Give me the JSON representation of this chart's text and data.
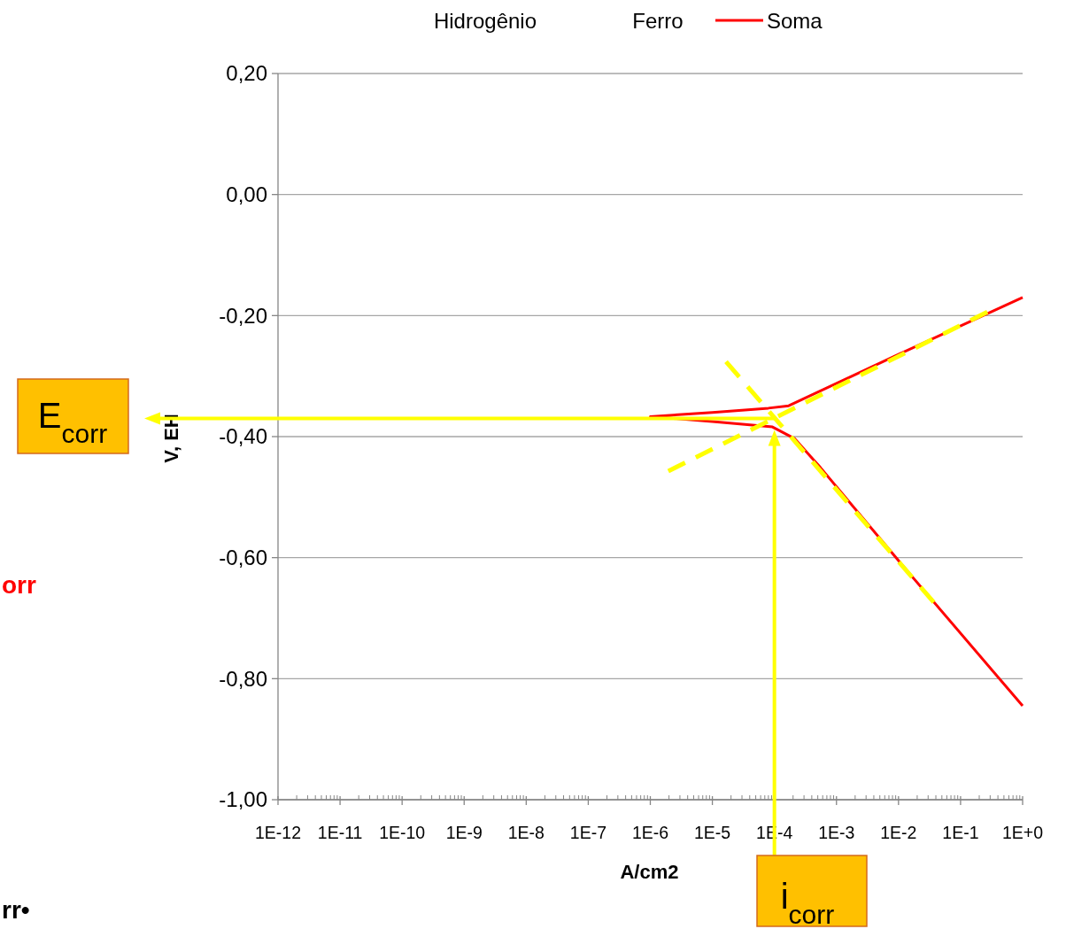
{
  "chart_data": {
    "type": "line",
    "xlabel": "A/cm2",
    "ylabel": "V, EH",
    "log": "x",
    "grid": "y",
    "legend": "top",
    "xlim": [
      1e-12,
      1
    ],
    "ylim": [
      -1,
      0.2
    ],
    "xticks": [
      {
        "value": 1e-12,
        "label": "1E-12"
      },
      {
        "value": 1e-11,
        "label": "1E-11"
      },
      {
        "value": 1e-10,
        "label": "1E-10"
      },
      {
        "value": 1e-09,
        "label": "1E-9"
      },
      {
        "value": 1e-08,
        "label": "1E-8"
      },
      {
        "value": 1e-07,
        "label": "1E-7"
      },
      {
        "value": 1e-06,
        "label": "1E-6"
      },
      {
        "value": 1e-05,
        "label": "1E-5"
      },
      {
        "value": 0.0001,
        "label": "1E-4"
      },
      {
        "value": 0.001,
        "label": "1E-3"
      },
      {
        "value": 0.01,
        "label": "1E-2"
      },
      {
        "value": 0.1,
        "label": "1E-1"
      },
      {
        "value": 1,
        "label": "1E+0"
      },
      {
        "value": 2e-12,
        "label": null
      },
      {
        "value": 3e-12,
        "label": null
      },
      {
        "value": 4e-12,
        "label": null
      },
      {
        "value": 5e-12,
        "label": null
      },
      {
        "value": 6e-12,
        "label": null
      },
      {
        "value": 7e-12,
        "label": null
      },
      {
        "value": 8e-12,
        "label": null
      },
      {
        "value": 9e-12,
        "label": null
      },
      {
        "value": 2e-11,
        "label": null
      },
      {
        "value": 3e-11,
        "label": null
      },
      {
        "value": 4e-11,
        "label": null
      },
      {
        "value": 5e-11,
        "label": null
      },
      {
        "value": 6e-11,
        "label": null
      },
      {
        "value": 7e-11,
        "label": null
      },
      {
        "value": 8e-11,
        "label": null
      },
      {
        "value": 9e-11,
        "label": null
      },
      {
        "value": 2e-10,
        "label": null
      },
      {
        "value": 3e-10,
        "label": null
      },
      {
        "value": 4e-10,
        "label": null
      },
      {
        "value": 5e-10,
        "label": null
      },
      {
        "value": 6e-10,
        "label": null
      },
      {
        "value": 7e-10,
        "label": null
      },
      {
        "value": 8e-10,
        "label": null
      },
      {
        "value": 9e-10,
        "label": null
      },
      {
        "value": 2e-09,
        "label": null
      },
      {
        "value": 3e-09,
        "label": null
      },
      {
        "value": 4e-09,
        "label": null
      },
      {
        "value": 5e-09,
        "label": null
      },
      {
        "value": 6e-09,
        "label": null
      },
      {
        "value": 7e-09,
        "label": null
      },
      {
        "value": 8e-09,
        "label": null
      },
      {
        "value": 9e-09,
        "label": null
      },
      {
        "value": 2e-08,
        "label": null
      },
      {
        "value": 3e-08,
        "label": null
      },
      {
        "value": 4e-08,
        "label": null
      },
      {
        "value": 5e-08,
        "label": null
      },
      {
        "value": 6e-08,
        "label": null
      },
      {
        "value": 7e-08,
        "label": null
      },
      {
        "value": 8e-08,
        "label": null
      },
      {
        "value": 9e-08,
        "label": null
      },
      {
        "value": 2e-07,
        "label": null
      },
      {
        "value": 3e-07,
        "label": null
      },
      {
        "value": 4e-07,
        "label": null
      },
      {
        "value": 5e-07,
        "label": null
      },
      {
        "value": 6e-07,
        "label": null
      },
      {
        "value": 7e-07,
        "label": null
      },
      {
        "value": 8e-07,
        "label": null
      },
      {
        "value": 9e-07,
        "label": null
      },
      {
        "value": 2e-06,
        "label": null
      },
      {
        "value": 3e-06,
        "label": null
      },
      {
        "value": 4e-06,
        "label": null
      },
      {
        "value": 5e-06,
        "label": null
      },
      {
        "value": 6e-06,
        "label": null
      },
      {
        "value": 7e-06,
        "label": null
      },
      {
        "value": 8e-06,
        "label": null
      },
      {
        "value": 9e-06,
        "label": null
      },
      {
        "value": 2e-05,
        "label": null
      },
      {
        "value": 3e-05,
        "label": null
      },
      {
        "value": 4e-05,
        "label": null
      },
      {
        "value": 5e-05,
        "label": null
      },
      {
        "value": 6e-05,
        "label": null
      },
      {
        "value": 7e-05,
        "label": null
      },
      {
        "value": 8e-05,
        "label": null
      },
      {
        "value": 9e-05,
        "label": null
      },
      {
        "value": 0.0002,
        "label": null
      },
      {
        "value": 0.0003,
        "label": null
      },
      {
        "value": 0.0004,
        "label": null
      },
      {
        "value": 0.0005,
        "label": null
      },
      {
        "value": 0.0006,
        "label": null
      },
      {
        "value": 0.0007,
        "label": null
      },
      {
        "value": 0.0008,
        "label": null
      },
      {
        "value": 0.0009,
        "label": null
      },
      {
        "value": 0.002,
        "label": null
      },
      {
        "value": 0.003,
        "label": null
      },
      {
        "value": 0.004,
        "label": null
      },
      {
        "value": 0.005,
        "label": null
      },
      {
        "value": 0.006,
        "label": null
      },
      {
        "value": 0.007,
        "label": null
      },
      {
        "value": 0.008,
        "label": null
      },
      {
        "value": 0.009,
        "label": null
      },
      {
        "value": 0.02,
        "label": null
      },
      {
        "value": 0.03,
        "label": null
      },
      {
        "value": 0.04,
        "label": null
      },
      {
        "value": 0.05,
        "label": null
      },
      {
        "value": 0.06,
        "label": null
      },
      {
        "value": 0.07,
        "label": null
      },
      {
        "value": 0.08,
        "label": null
      },
      {
        "value": 0.09,
        "label": null
      },
      {
        "value": 0.2,
        "label": null
      },
      {
        "value": 0.3,
        "label": null
      },
      {
        "value": 0.4,
        "label": null
      },
      {
        "value": 0.5,
        "label": null
      },
      {
        "value": 0.6,
        "label": null
      },
      {
        "value": 0.7,
        "label": null
      },
      {
        "value": 0.8,
        "label": null
      },
      {
        "value": 0.9,
        "label": null
      }
    ],
    "yticks": [
      {
        "value": 0.2,
        "label": "0,20"
      },
      {
        "value": 0,
        "label": "0,00"
      },
      {
        "value": -0.2,
        "label": "-0,20"
      },
      {
        "value": -0.4,
        "label": "-0,40"
      },
      {
        "value": -0.6,
        "label": "-0,60"
      },
      {
        "value": -0.8,
        "label": "-0,80"
      },
      {
        "value": -1,
        "label": "-1,00"
      }
    ],
    "series": [
      {
        "name": "Soma",
        "color": "#ff0000",
        "line_style": "solid",
        "x": [
          1,
          0.01,
          0.00017,
          8e-05,
          1e-05,
          1e-06,
          1e-05,
          9.3e-05,
          0.00021,
          0.00055,
          0.01,
          1
        ],
        "values": [
          -0.17,
          -0.264,
          -0.349,
          -0.353,
          -0.36,
          -0.367,
          -0.375,
          -0.384,
          -0.403,
          -0.451,
          -0.605,
          -0.845
        ]
      },
      {
        "type": "line",
        "color": "#ffff00",
        "line_style": "dashed",
        "x": [
          1.95e-06,
          0.27
        ],
        "values": [
          -0.457,
          -0.194
        ]
      },
      {
        "type": "line",
        "color": "#ffff00",
        "line_style": "dashed",
        "x": [
          1.66e-05,
          0.037
        ],
        "values": [
          -0.276,
          -0.674
        ]
      }
    ],
    "ref_lines": [
      {
        "axis": "y",
        "value": -0.37,
        "label": "E$_{corr}$",
        "color": "#ffff00"
      },
      {
        "axis": "x",
        "value": 0.0001,
        "label": "i$_{corr}$",
        "color": "#ffff00"
      }
    ],
    "annotations": [
      "Hidrogênio",
      "Ferro",
      "orr",
      "rr•"
    ]
  }
}
